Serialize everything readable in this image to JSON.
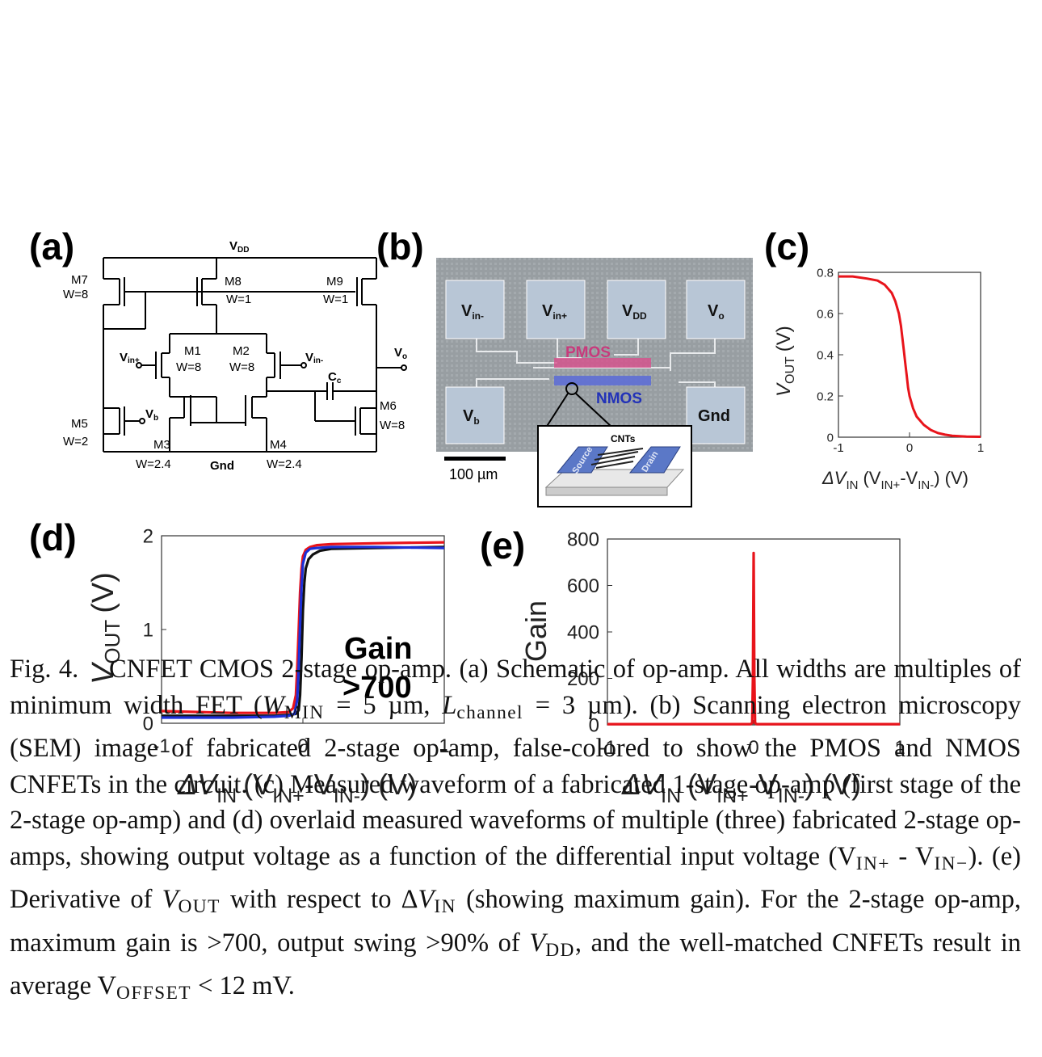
{
  "panels": {
    "a": {
      "label": "(a)",
      "vdd": "V",
      "vdd_sub": "DD",
      "m7": "M7",
      "m7w": "W=8",
      "m8": "M8",
      "m8w": "W=1",
      "m9": "M9",
      "m9w": "W=1",
      "m1": "M1",
      "m1w": "W=8",
      "m2": "M2",
      "m2w": "W=8",
      "vinp": "V",
      "vinp_sub": "in+",
      "vinm": "V",
      "vinm_sub": "in-",
      "vo": "V",
      "vo_sub": "o",
      "cc": "C",
      "cc_sub": "c",
      "vb": "V",
      "vb_sub": "b",
      "m5": "M5",
      "m5w": "W=2",
      "m6": "M6",
      "m6w": "W=8",
      "m3": "M3",
      "m3w": "W=2.4",
      "m4": "M4",
      "m4w": "W=2.4",
      "gnd": "Gnd"
    },
    "b": {
      "label": "(b)",
      "pads": [
        {
          "main": "V",
          "sub": "in-"
        },
        {
          "main": "V",
          "sub": "in+"
        },
        {
          "main": "V",
          "sub": "DD"
        },
        {
          "main": "V",
          "sub": "o"
        },
        {
          "main": "V",
          "sub": "b"
        },
        {
          "main": "Gnd",
          "sub": ""
        }
      ],
      "pmos": "PMOS",
      "nmos": "NMOS",
      "cnts": "CNTs",
      "source": "Source",
      "drain": "Drain",
      "scale": "100 µm"
    },
    "c": {
      "label": "(c)",
      "ylabel_main": "V",
      "ylabel_sub": "OUT",
      "ylabel_unit": "(V)",
      "xlabel": "ΔV",
      "xlabel_sub": "IN",
      "xlabel_rest": "(V",
      "xlabel_sub2": "IN+",
      "xlabel_mid": "-V",
      "xlabel_sub3": "IN-",
      "xlabel_end": ") (V)"
    },
    "d": {
      "label": "(d)",
      "ylabel_main": "V",
      "ylabel_sub": "OUT",
      "ylabel_unit": "(V)",
      "xlabel": "ΔV",
      "xlabel_sub": "IN",
      "xlabel_rest": "(V",
      "xlabel_sub2": "IN+",
      "xlabel_mid": "-V",
      "xlabel_sub3": "IN-",
      "xlabel_end": ") (V)",
      "annotation_1": "Gain",
      "annotation_2": ">700"
    },
    "e": {
      "label": "(e)",
      "ylabel": "Gain",
      "xlabel": "ΔV",
      "xlabel_sub": "IN",
      "xlabel_rest": "(V",
      "xlabel_sub2": "IN+",
      "xlabel_mid": "-V",
      "xlabel_sub3": "IN-",
      "xlabel_end": ") (V)"
    }
  },
  "chart_data": [
    {
      "id": "c",
      "type": "line",
      "xlim": [
        -1,
        1
      ],
      "ylim": [
        0,
        0.8
      ],
      "xticks": [
        -1,
        0,
        1
      ],
      "xtick_labels": [
        "-1",
        "0",
        "1"
      ],
      "yticks": [
        0,
        0.2,
        0.4,
        0.6,
        0.8
      ],
      "ytick_labels": [
        "0",
        "0.2",
        "0.4",
        "0.6",
        "0.8"
      ],
      "series": [
        {
          "color": "#e8141b",
          "x": [
            -1,
            -0.8,
            -0.6,
            -0.45,
            -0.35,
            -0.3,
            -0.25,
            -0.2,
            -0.15,
            -0.12,
            -0.1,
            -0.08,
            -0.06,
            -0.04,
            -0.02,
            0,
            0.05,
            0.1,
            0.2,
            0.3,
            0.4,
            0.5,
            0.6,
            0.8,
            1
          ],
          "y": [
            0.78,
            0.78,
            0.77,
            0.76,
            0.74,
            0.72,
            0.7,
            0.66,
            0.6,
            0.54,
            0.48,
            0.42,
            0.36,
            0.3,
            0.24,
            0.2,
            0.14,
            0.1,
            0.06,
            0.035,
            0.02,
            0.012,
            0.007,
            0.003,
            0.002
          ]
        }
      ]
    },
    {
      "id": "d",
      "type": "line",
      "xlim": [
        -1,
        1
      ],
      "ylim": [
        0,
        2
      ],
      "xticks": [
        -1,
        0,
        1
      ],
      "xtick_labels": [
        "-1",
        "0",
        "1"
      ],
      "yticks": [
        0,
        1,
        2
      ],
      "ytick_labels": [
        "0",
        "1",
        "2"
      ],
      "series": [
        {
          "color": "#e8141b",
          "x": [
            -1,
            -0.5,
            -0.2,
            -0.1,
            -0.07,
            -0.05,
            -0.04,
            -0.03,
            -0.02,
            -0.01,
            0,
            0.02,
            0.05,
            0.1,
            0.2,
            0.5,
            1
          ],
          "y": [
            0.13,
            0.11,
            0.11,
            0.12,
            0.16,
            0.3,
            0.6,
            1.0,
            1.4,
            1.65,
            1.78,
            1.85,
            1.88,
            1.9,
            1.91,
            1.92,
            1.93
          ]
        },
        {
          "color": "#111111",
          "x": [
            -1,
            -0.5,
            -0.2,
            -0.1,
            -0.05,
            -0.03,
            -0.02,
            -0.01,
            0,
            0.01,
            0.02,
            0.04,
            0.07,
            0.12,
            0.2,
            0.5,
            1
          ],
          "y": [
            0.08,
            0.08,
            0.08,
            0.09,
            0.1,
            0.14,
            0.3,
            0.7,
            1.2,
            1.5,
            1.65,
            1.75,
            1.8,
            1.84,
            1.86,
            1.87,
            1.88
          ]
        },
        {
          "color": "#1c2fd6",
          "x": [
            -1,
            -0.5,
            -0.2,
            -0.1,
            -0.06,
            -0.04,
            -0.03,
            -0.02,
            -0.01,
            0,
            0.02,
            0.05,
            0.1,
            0.2,
            0.5,
            1
          ],
          "y": [
            0.06,
            0.06,
            0.07,
            0.08,
            0.1,
            0.25,
            0.6,
            1.05,
            1.45,
            1.7,
            1.82,
            1.86,
            1.87,
            1.88,
            1.88,
            1.87
          ]
        }
      ]
    },
    {
      "id": "e",
      "type": "line",
      "xlim": [
        -1,
        1
      ],
      "ylim": [
        0,
        800
      ],
      "xticks": [
        -1,
        0,
        1
      ],
      "xtick_labels": [
        "-1",
        "0",
        "1"
      ],
      "yticks": [
        0,
        200,
        400,
        600,
        800
      ],
      "ytick_labels": [
        "0",
        "200",
        "400",
        "600",
        "800"
      ],
      "series": [
        {
          "color": "#e8141b",
          "x": [
            -1,
            -0.02,
            -0.01,
            -0.005,
            0,
            0.005,
            0.01,
            0.02,
            1
          ],
          "y": [
            3,
            3,
            8,
            200,
            740,
            200,
            8,
            3,
            3
          ]
        }
      ]
    }
  ],
  "caption": {
    "fig": "Fig. 4.",
    "p1": "CNFET CMOS 2-stage op-amp. (a) Schematic of op-amp. All widths are multiples of minimum width FET (",
    "wmin": "W",
    "wmin_sub": "MIN",
    "p2": " = 5 µm, ",
    "lch": "L",
    "lch_sub": "channel",
    "p3": " = 3 µm). (b) Scanning electron microscopy (SEM) image of fabricated 2-stage op-amp, false-colored to show the PMOS and NMOS CNFETs in the circuit. (c) Measured waveform of a fabricated 1-stage op-amp (first stage of the 2-stage op-amp) and (d) overlaid measured waveforms of multiple (three) fabricated 2-stage op-amps, showing output voltage as a function of the differential input voltage (V",
    "vinp_sub": "IN+",
    "p4": " - V",
    "vinm_sub": "IN−",
    "p5": "). (e) Derivative of ",
    "vout": "V",
    "vout_sub": "OUT",
    "p6": " with respect to Δ",
    "vin": "V",
    "vin_sub": "IN",
    "p7": " (showing maximum gain). For the 2-stage op-amp, maximum gain is >700, output swing >90% of ",
    "vdd": "V",
    "vdd_sub": "DD",
    "p8": ", and the well-matched CNFETs result in average V",
    "voff_sub": "OFFSET",
    "p9": " < 12 mV."
  }
}
